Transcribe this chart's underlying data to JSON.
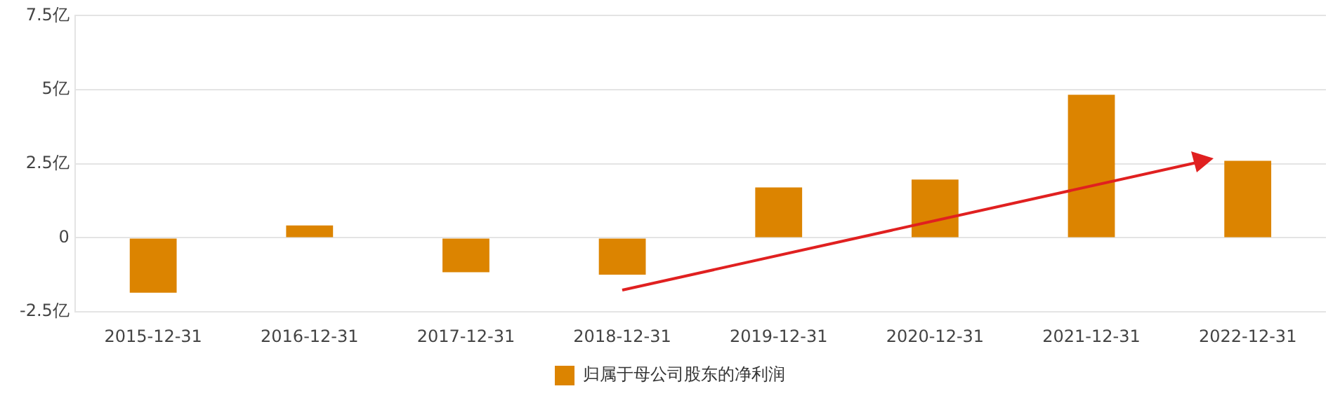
{
  "chart_data": {
    "type": "bar",
    "categories": [
      "2015-12-31",
      "2016-12-31",
      "2017-12-31",
      "2018-12-31",
      "2019-12-31",
      "2020-12-31",
      "2021-12-31",
      "2022-12-31"
    ],
    "series": [
      {
        "name": "归属于母公司股东的净利润",
        "color": "#dc8400",
        "values": [
          -1.85,
          0.42,
          -1.16,
          -1.24,
          1.7,
          1.97,
          4.83,
          2.6
        ]
      }
    ],
    "ylim": [
      -2.5,
      7.5
    ],
    "yticks": [
      {
        "value": -2.5,
        "label": "-2.5亿"
      },
      {
        "value": 0,
        "label": "0"
      },
      {
        "value": 2.5,
        "label": "2.5亿"
      },
      {
        "value": 5,
        "label": "5亿"
      },
      {
        "value": 7.5,
        "label": "7.5亿"
      }
    ],
    "grid": "y",
    "legend": "bottom"
  }
}
